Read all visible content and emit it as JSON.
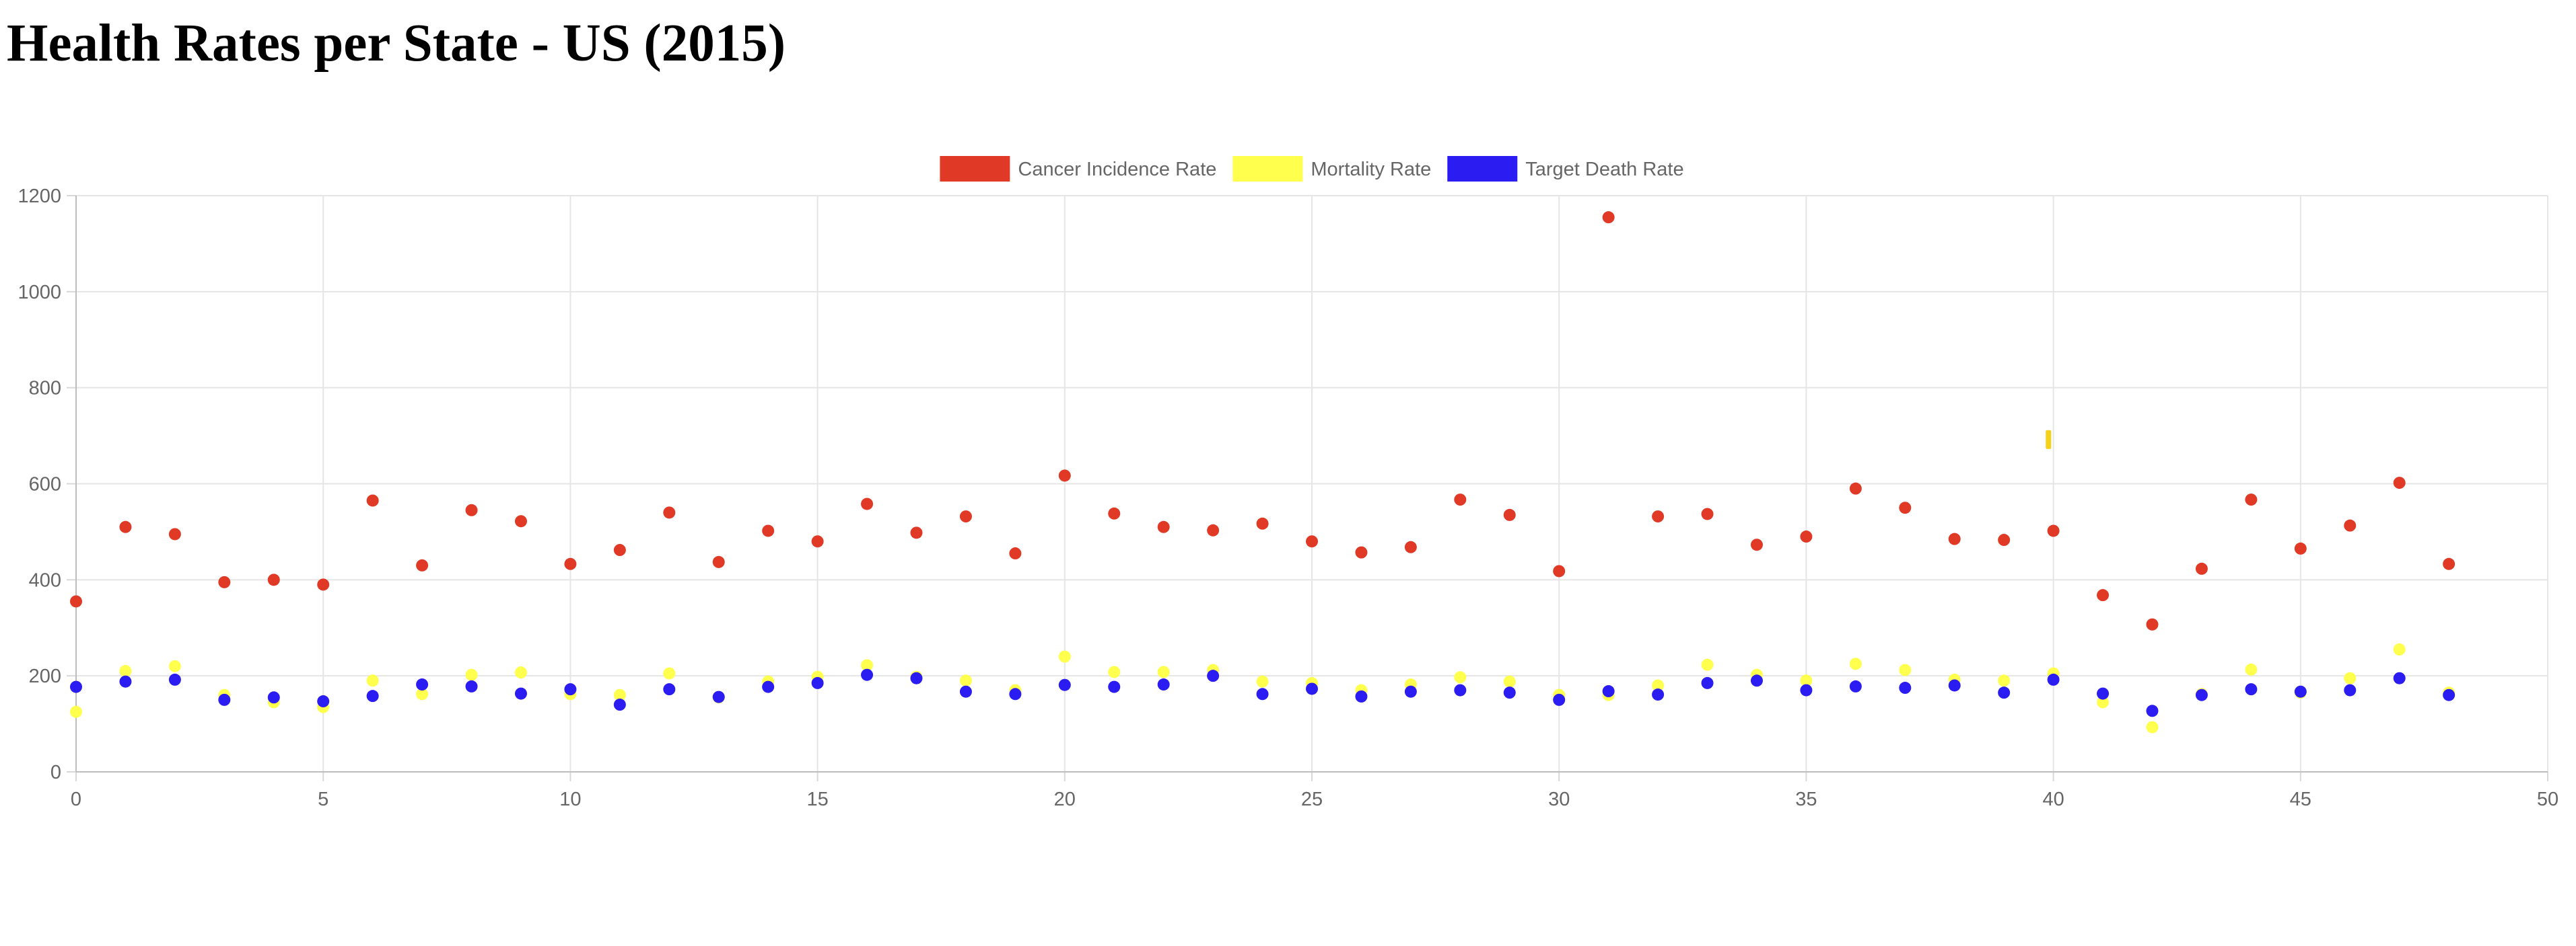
{
  "page": {
    "title": "Health Rates per State - US (2015)"
  },
  "chart_data": {
    "type": "scatter",
    "title": "",
    "xlabel": "",
    "ylabel": "",
    "xlim": [
      0,
      50
    ],
    "ylim": [
      0,
      1200
    ],
    "x_ticks": [
      "0",
      "5",
      "10",
      "15",
      "20",
      "25",
      "30",
      "35",
      "40",
      "45",
      "50"
    ],
    "y_ticks": [
      "0",
      "200",
      "400",
      "600",
      "800",
      "1000",
      "1200"
    ],
    "grid": true,
    "legend_position": "top-center",
    "series": [
      {
        "name": "Cancer Incidence Rate",
        "color": "#e03a26",
        "x": [
          0,
          1,
          2,
          3,
          4,
          5,
          6,
          7,
          8,
          9,
          10,
          11,
          12,
          13,
          14,
          15,
          16,
          17,
          18,
          19,
          20,
          21,
          22,
          23,
          24,
          25,
          26,
          27,
          28,
          29,
          30,
          31,
          32,
          33,
          34,
          35,
          36,
          37,
          38,
          39,
          40,
          41,
          42,
          43,
          44,
          45,
          46,
          47,
          48
        ],
        "y": [
          355,
          510,
          495,
          395,
          400,
          390,
          565,
          430,
          545,
          522,
          433,
          462,
          540,
          437,
          502,
          480,
          558,
          498,
          532,
          455,
          617,
          538,
          510,
          503,
          517,
          480,
          457,
          468,
          567,
          535,
          418,
          1155,
          532,
          537,
          473,
          490,
          590,
          550,
          485,
          483,
          502,
          368,
          307,
          423,
          567,
          465,
          513,
          602,
          433
        ]
      },
      {
        "name": "Mortality Rate",
        "color": "#ffff4d",
        "x": [
          0,
          1,
          2,
          3,
          4,
          5,
          6,
          7,
          8,
          9,
          10,
          11,
          12,
          13,
          14,
          15,
          16,
          17,
          18,
          19,
          20,
          21,
          22,
          23,
          24,
          25,
          26,
          27,
          28,
          29,
          30,
          31,
          32,
          33,
          34,
          35,
          36,
          37,
          38,
          39,
          39.9,
          40,
          41,
          42,
          43,
          44,
          45,
          46,
          47,
          48
        ],
        "y": [
          125,
          210,
          220,
          160,
          145,
          135,
          190,
          162,
          202,
          207,
          162,
          160,
          205,
          155,
          188,
          198,
          222,
          198,
          190,
          170,
          240,
          208,
          208,
          212,
          188,
          185,
          170,
          182,
          197,
          188,
          160,
          160,
          180,
          223,
          202,
          190,
          225,
          212,
          192,
          190,
          692,
          205,
          145,
          93,
          162,
          213,
          165,
          195,
          255,
          165
        ]
      },
      {
        "name": "Target Death Rate",
        "color": "#2b1df2",
        "x": [
          0,
          1,
          2,
          3,
          4,
          5,
          6,
          7,
          8,
          9,
          10,
          11,
          12,
          13,
          14,
          15,
          16,
          17,
          18,
          19,
          20,
          21,
          22,
          23,
          24,
          25,
          26,
          27,
          28,
          29,
          30,
          31,
          32,
          33,
          34,
          35,
          36,
          37,
          38,
          39,
          40,
          41,
          42,
          43,
          44,
          45,
          46,
          47,
          48
        ],
        "y": [
          177,
          188,
          192,
          150,
          155,
          147,
          158,
          182,
          178,
          163,
          172,
          140,
          172,
          156,
          177,
          185,
          202,
          195,
          167,
          162,
          181,
          177,
          182,
          200,
          162,
          173,
          157,
          167,
          170,
          165,
          150,
          168,
          161,
          185,
          190,
          170,
          178,
          175,
          180,
          165,
          192,
          163,
          127,
          160,
          172,
          167,
          170,
          195,
          160
        ]
      }
    ]
  }
}
